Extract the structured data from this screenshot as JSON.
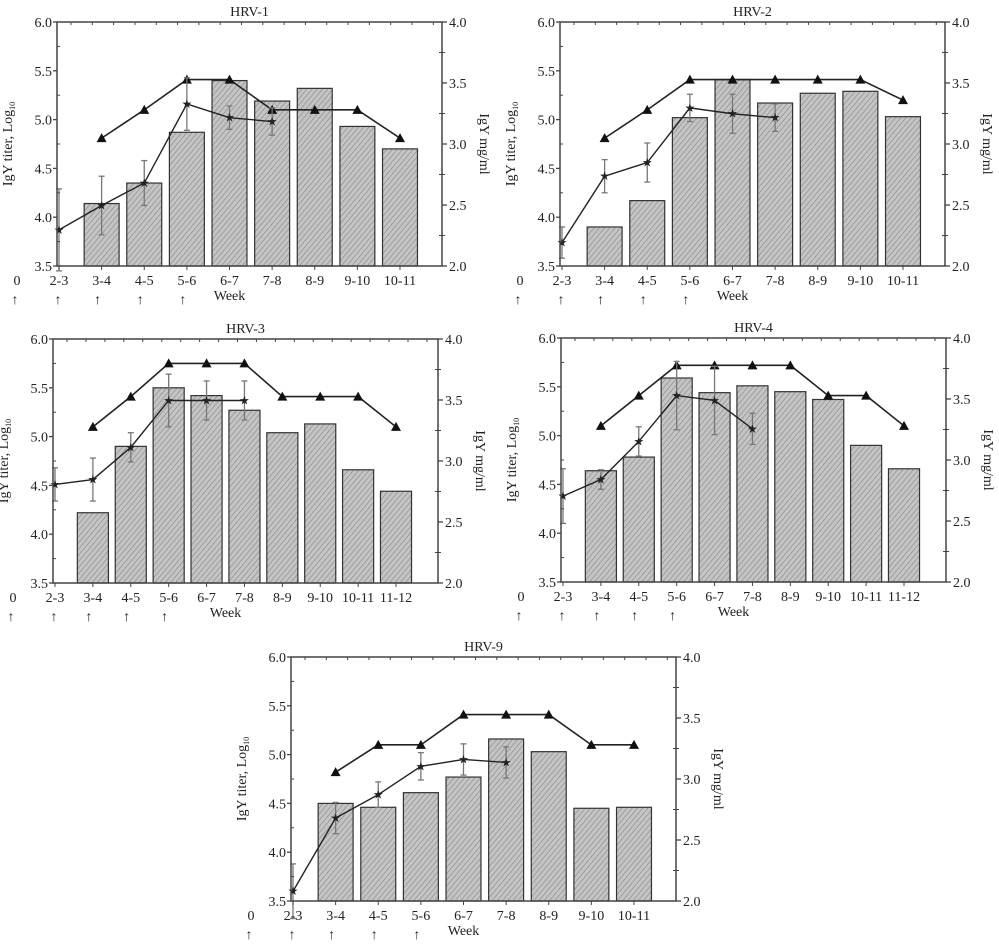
{
  "chart_data": [
    {
      "type": "bar",
      "title": "HRV-1",
      "xlabel": "Week",
      "ylabel": "IgY titer, Log10",
      "ylabel_main": "IgY titer, Log",
      "ylabel_sub": "10",
      "y2label": "IgY mg/ml",
      "ylim": [
        3.5,
        6.0
      ],
      "y2lim": [
        2.0,
        4.0
      ],
      "yticks": [
        "3.5",
        "4.0",
        "4.5",
        "5.0",
        "5.5",
        "6.0"
      ],
      "y2ticks": [
        "2.0",
        "2.5",
        "3.0",
        "3.5",
        "4.0"
      ],
      "zero_label": "0",
      "categories": [
        "2-3",
        "3-4",
        "4-5",
        "5-6",
        "6-7",
        "7-8",
        "8-9",
        "9-10",
        "10-11"
      ],
      "arrow_marks": [
        "0",
        "2-3",
        "3-4",
        "4-5",
        "5-6"
      ],
      "bars": [
        null,
        4.14,
        4.35,
        4.87,
        5.4,
        5.19,
        5.32,
        4.93,
        4.7
      ],
      "triangles": [
        null,
        4.81,
        5.1,
        5.41,
        5.41,
        5.1,
        5.1,
        5.1,
        4.81
      ],
      "stars": [
        3.87,
        4.12,
        4.35,
        5.16,
        5.02,
        4.98,
        null,
        null,
        null
      ],
      "star_err": [
        0.42,
        0.3,
        0.23,
        0.27,
        0.12,
        0.14,
        null,
        null,
        null
      ]
    },
    {
      "type": "bar",
      "title": "HRV-2",
      "xlabel": "Week",
      "ylabel": "IgY titer, Log10",
      "ylabel_main": "IgY titer, Log",
      "ylabel_sub": "10",
      "y2label": "IgY mg/ml",
      "ylim": [
        3.5,
        6.0
      ],
      "y2lim": [
        2.0,
        4.0
      ],
      "yticks": [
        "3.5",
        "4.0",
        "4.5",
        "5.0",
        "5.5",
        "6.0"
      ],
      "y2ticks": [
        "2.0",
        "2.5",
        "3.0",
        "3.5",
        "4.0"
      ],
      "zero_label": "0",
      "categories": [
        "2-3",
        "3-4",
        "4-5",
        "5-6",
        "6-7",
        "7-8",
        "8-9",
        "9-10",
        "10-11"
      ],
      "arrow_marks": [
        "0",
        "2-3",
        "3-4",
        "4-5",
        "5-6"
      ],
      "bars": [
        null,
        3.9,
        4.17,
        5.02,
        5.41,
        5.17,
        5.27,
        5.29,
        5.03
      ],
      "triangles": [
        null,
        4.81,
        5.1,
        5.41,
        5.41,
        5.41,
        5.41,
        5.41,
        5.2
      ],
      "stars": [
        3.74,
        4.42,
        4.56,
        5.12,
        5.06,
        5.02,
        null,
        null,
        null
      ],
      "star_err": [
        0.16,
        0.17,
        0.2,
        0.14,
        0.2,
        0.14,
        null,
        null,
        null
      ]
    },
    {
      "type": "bar",
      "title": "HRV-3",
      "xlabel": "Week",
      "ylabel": "IgY titer, Log10",
      "ylabel_main": "IgY titer, Log",
      "ylabel_sub": "10",
      "y2label": "IgY mg/ml",
      "ylim": [
        3.5,
        6.0
      ],
      "y2lim": [
        2.0,
        4.0
      ],
      "yticks": [
        "3.5",
        "4.0",
        "4.5",
        "5.0",
        "5.5",
        "6.0"
      ],
      "y2ticks": [
        "2.0",
        "2.5",
        "3.0",
        "3.5",
        "4.0"
      ],
      "zero_label": "0",
      "categories": [
        "2-3",
        "3-4",
        "4-5",
        "5-6",
        "6-7",
        "7-8",
        "8-9",
        "9-10",
        "10-11",
        "11-12"
      ],
      "arrow_marks": [
        "0",
        "2-3",
        "3-4",
        "4-5",
        "5-6"
      ],
      "bars": [
        null,
        4.22,
        4.9,
        5.5,
        5.42,
        5.27,
        5.04,
        5.13,
        4.66,
        4.44
      ],
      "triangles": [
        null,
        5.1,
        5.41,
        5.75,
        5.75,
        5.75,
        5.41,
        5.41,
        5.41,
        5.1
      ],
      "stars": [
        4.51,
        4.56,
        4.89,
        5.37,
        5.37,
        5.37,
        null,
        null,
        null,
        null
      ],
      "star_err": [
        0.17,
        0.22,
        0.15,
        0.27,
        0.2,
        0.2,
        null,
        null,
        null,
        null
      ]
    },
    {
      "type": "bar",
      "title": "HRV-4",
      "xlabel": "Week",
      "ylabel": "IgY titer, Log10",
      "ylabel_main": "IgY titer, Log",
      "ylabel_sub": "10",
      "y2label": "IgY mg/ml",
      "ylim": [
        3.5,
        6.0
      ],
      "y2lim": [
        2.0,
        4.0
      ],
      "yticks": [
        "3.5",
        "4.0",
        "4.5",
        "5.0",
        "5.5",
        "6.0"
      ],
      "y2ticks": [
        "2.0",
        "2.5",
        "3.0",
        "3.5",
        "4.0"
      ],
      "zero_label": "0",
      "categories": [
        "2-3",
        "3-4",
        "4-5",
        "5-6",
        "6-7",
        "7-8",
        "8-9",
        "9-10",
        "10-11",
        "11-12"
      ],
      "arrow_marks": [
        "0",
        "2-3",
        "3-4",
        "4-5",
        "5-6"
      ],
      "bars": [
        null,
        4.64,
        4.78,
        5.59,
        5.44,
        5.51,
        5.45,
        5.37,
        4.9,
        4.66
      ],
      "triangles": [
        null,
        5.1,
        5.41,
        5.72,
        5.72,
        5.72,
        5.72,
        5.41,
        5.41,
        5.1
      ],
      "stars": [
        4.38,
        4.55,
        4.94,
        5.41,
        5.36,
        5.07,
        null,
        null,
        null,
        null
      ],
      "star_err": [
        0.28,
        0.1,
        0.15,
        0.35,
        0.35,
        0.16,
        null,
        null,
        null,
        null
      ]
    },
    {
      "type": "bar",
      "title": "HRV-9",
      "xlabel": "Week",
      "ylabel": "IgY titer, Log10",
      "ylabel_main": "IgY titer, Log",
      "ylabel_sub": "10",
      "y2label": "IgY mg/ml",
      "ylim": [
        3.5,
        6.0
      ],
      "y2lim": [
        2.0,
        4.0
      ],
      "yticks": [
        "3.5",
        "4.0",
        "4.5",
        "5.0",
        "5.5",
        "6.0"
      ],
      "y2ticks": [
        "2.0",
        "2.5",
        "3.0",
        "3.5",
        "4.0"
      ],
      "zero_label": "0",
      "categories": [
        "2-3",
        "3-4",
        "4-5",
        "5-6",
        "6-7",
        "7-8",
        "8-9",
        "9-10",
        "10-11"
      ],
      "arrow_marks": [
        "0",
        "2-3",
        "3-4",
        "4-5",
        "5-6"
      ],
      "bars": [
        null,
        4.5,
        4.46,
        4.61,
        4.77,
        5.16,
        5.03,
        4.45,
        4.46
      ],
      "triangles": [
        null,
        4.82,
        5.1,
        5.1,
        5.41,
        5.41,
        5.41,
        5.1,
        5.1
      ],
      "stars": [
        3.6,
        4.35,
        4.59,
        4.88,
        4.95,
        4.92,
        null,
        null,
        null
      ],
      "star_err": [
        0.28,
        0.16,
        0.13,
        0.14,
        0.16,
        0.16,
        null,
        null,
        null
      ]
    }
  ],
  "colors": {
    "bar_fill": "#c4c4c4",
    "line": "#222222",
    "errorbar": "#777777"
  }
}
